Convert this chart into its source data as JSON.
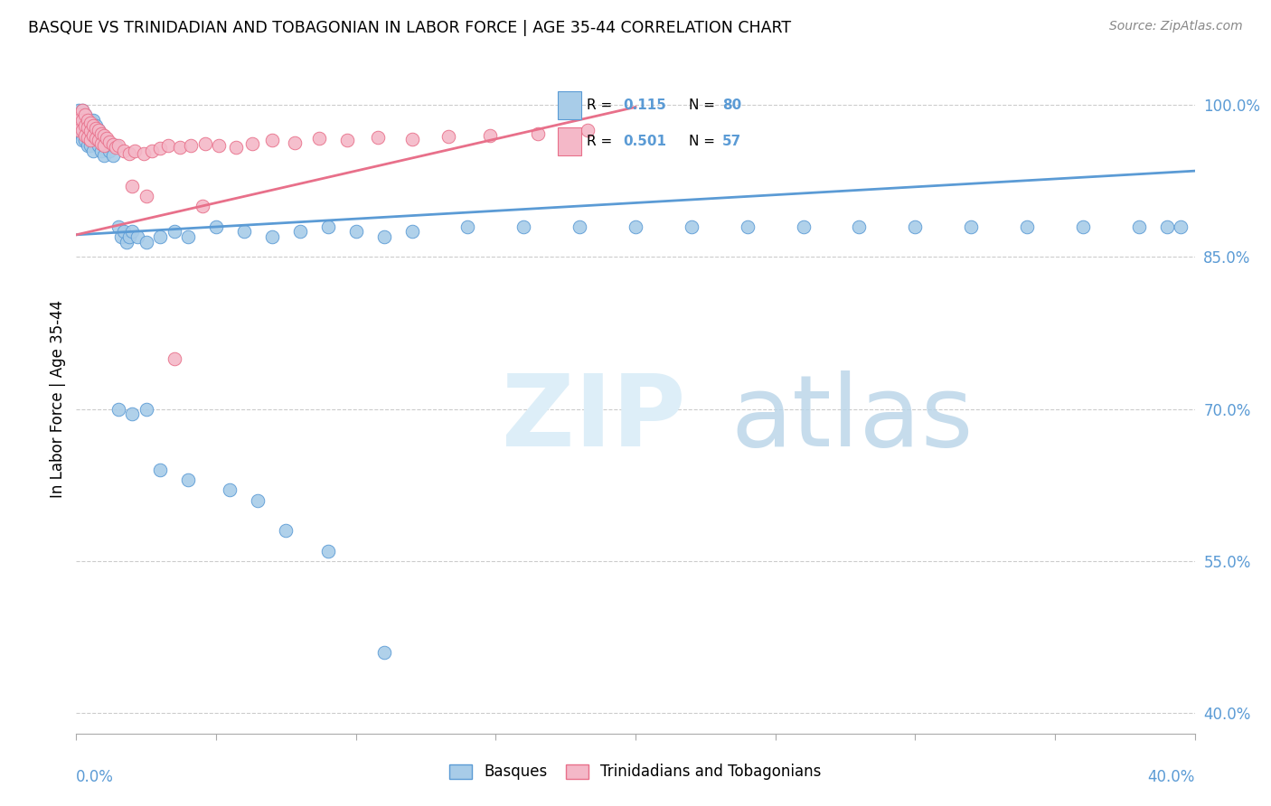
{
  "title": "BASQUE VS TRINIDADIAN AND TOBAGONIAN IN LABOR FORCE | AGE 35-44 CORRELATION CHART",
  "source": "Source: ZipAtlas.com",
  "ylabel": "In Labor Force | Age 35-44",
  "ytick_vals": [
    0.4,
    0.55,
    0.7,
    0.85,
    1.0
  ],
  "xlim": [
    0.0,
    0.4
  ],
  "ylim": [
    0.38,
    1.04
  ],
  "blue_color": "#a8cce8",
  "pink_color": "#f4b8c8",
  "blue_edge_color": "#5b9bd5",
  "pink_edge_color": "#e8708a",
  "blue_line_color": "#5b9bd5",
  "pink_line_color": "#e8708a",
  "legend_blue_R": "0.115",
  "legend_blue_N": "80",
  "legend_pink_R": "0.501",
  "legend_pink_N": "57",
  "blue_scatter_x": [
    0.001,
    0.001,
    0.001,
    0.001,
    0.001,
    0.002,
    0.002,
    0.002,
    0.002,
    0.002,
    0.003,
    0.003,
    0.003,
    0.003,
    0.004,
    0.004,
    0.004,
    0.004,
    0.005,
    0.005,
    0.005,
    0.006,
    0.006,
    0.006,
    0.007,
    0.007,
    0.008,
    0.008,
    0.009,
    0.009,
    0.01,
    0.01,
    0.011,
    0.012,
    0.013,
    0.014,
    0.015,
    0.016,
    0.017,
    0.018,
    0.019,
    0.02,
    0.022,
    0.025,
    0.03,
    0.035,
    0.04,
    0.05,
    0.06,
    0.07,
    0.08,
    0.09,
    0.1,
    0.11,
    0.12,
    0.14,
    0.16,
    0.18,
    0.2,
    0.22,
    0.24,
    0.26,
    0.28,
    0.3,
    0.32,
    0.34,
    0.36,
    0.38,
    0.39,
    0.395,
    0.015,
    0.02,
    0.025,
    0.03,
    0.04,
    0.055,
    0.065,
    0.075,
    0.09,
    0.11
  ],
  "blue_scatter_y": [
    0.995,
    0.99,
    0.985,
    0.98,
    0.975,
    0.995,
    0.99,
    0.985,
    0.97,
    0.965,
    0.99,
    0.985,
    0.975,
    0.965,
    0.985,
    0.98,
    0.97,
    0.96,
    0.985,
    0.975,
    0.96,
    0.985,
    0.97,
    0.955,
    0.98,
    0.965,
    0.975,
    0.96,
    0.97,
    0.955,
    0.965,
    0.95,
    0.96,
    0.955,
    0.95,
    0.96,
    0.88,
    0.87,
    0.875,
    0.865,
    0.87,
    0.875,
    0.87,
    0.865,
    0.87,
    0.875,
    0.87,
    0.88,
    0.875,
    0.87,
    0.875,
    0.88,
    0.875,
    0.87,
    0.875,
    0.88,
    0.88,
    0.88,
    0.88,
    0.88,
    0.88,
    0.88,
    0.88,
    0.88,
    0.88,
    0.88,
    0.88,
    0.88,
    0.88,
    0.88,
    0.7,
    0.695,
    0.7,
    0.64,
    0.63,
    0.62,
    0.61,
    0.58,
    0.56,
    0.46
  ],
  "pink_scatter_x": [
    0.001,
    0.001,
    0.001,
    0.002,
    0.002,
    0.002,
    0.003,
    0.003,
    0.003,
    0.004,
    0.004,
    0.004,
    0.005,
    0.005,
    0.005,
    0.006,
    0.006,
    0.007,
    0.007,
    0.008,
    0.008,
    0.009,
    0.009,
    0.01,
    0.01,
    0.011,
    0.012,
    0.013,
    0.014,
    0.015,
    0.017,
    0.019,
    0.021,
    0.024,
    0.027,
    0.03,
    0.033,
    0.037,
    0.041,
    0.046,
    0.051,
    0.057,
    0.063,
    0.07,
    0.078,
    0.087,
    0.097,
    0.108,
    0.12,
    0.133,
    0.148,
    0.165,
    0.183,
    0.02,
    0.025,
    0.035,
    0.045
  ],
  "pink_scatter_y": [
    0.99,
    0.985,
    0.975,
    0.995,
    0.985,
    0.975,
    0.99,
    0.98,
    0.97,
    0.985,
    0.978,
    0.968,
    0.982,
    0.974,
    0.965,
    0.98,
    0.97,
    0.977,
    0.967,
    0.975,
    0.965,
    0.972,
    0.962,
    0.97,
    0.96,
    0.967,
    0.964,
    0.961,
    0.958,
    0.96,
    0.955,
    0.952,
    0.955,
    0.952,
    0.955,
    0.957,
    0.96,
    0.958,
    0.96,
    0.962,
    0.96,
    0.958,
    0.962,
    0.965,
    0.963,
    0.967,
    0.965,
    0.968,
    0.966,
    0.969,
    0.97,
    0.972,
    0.975,
    0.92,
    0.91,
    0.75,
    0.9
  ],
  "blue_trend_x": [
    0.0,
    0.4
  ],
  "blue_trend_y": [
    0.872,
    0.935
  ],
  "pink_trend_x": [
    0.0,
    0.2
  ],
  "pink_trend_y": [
    0.872,
    0.998
  ]
}
